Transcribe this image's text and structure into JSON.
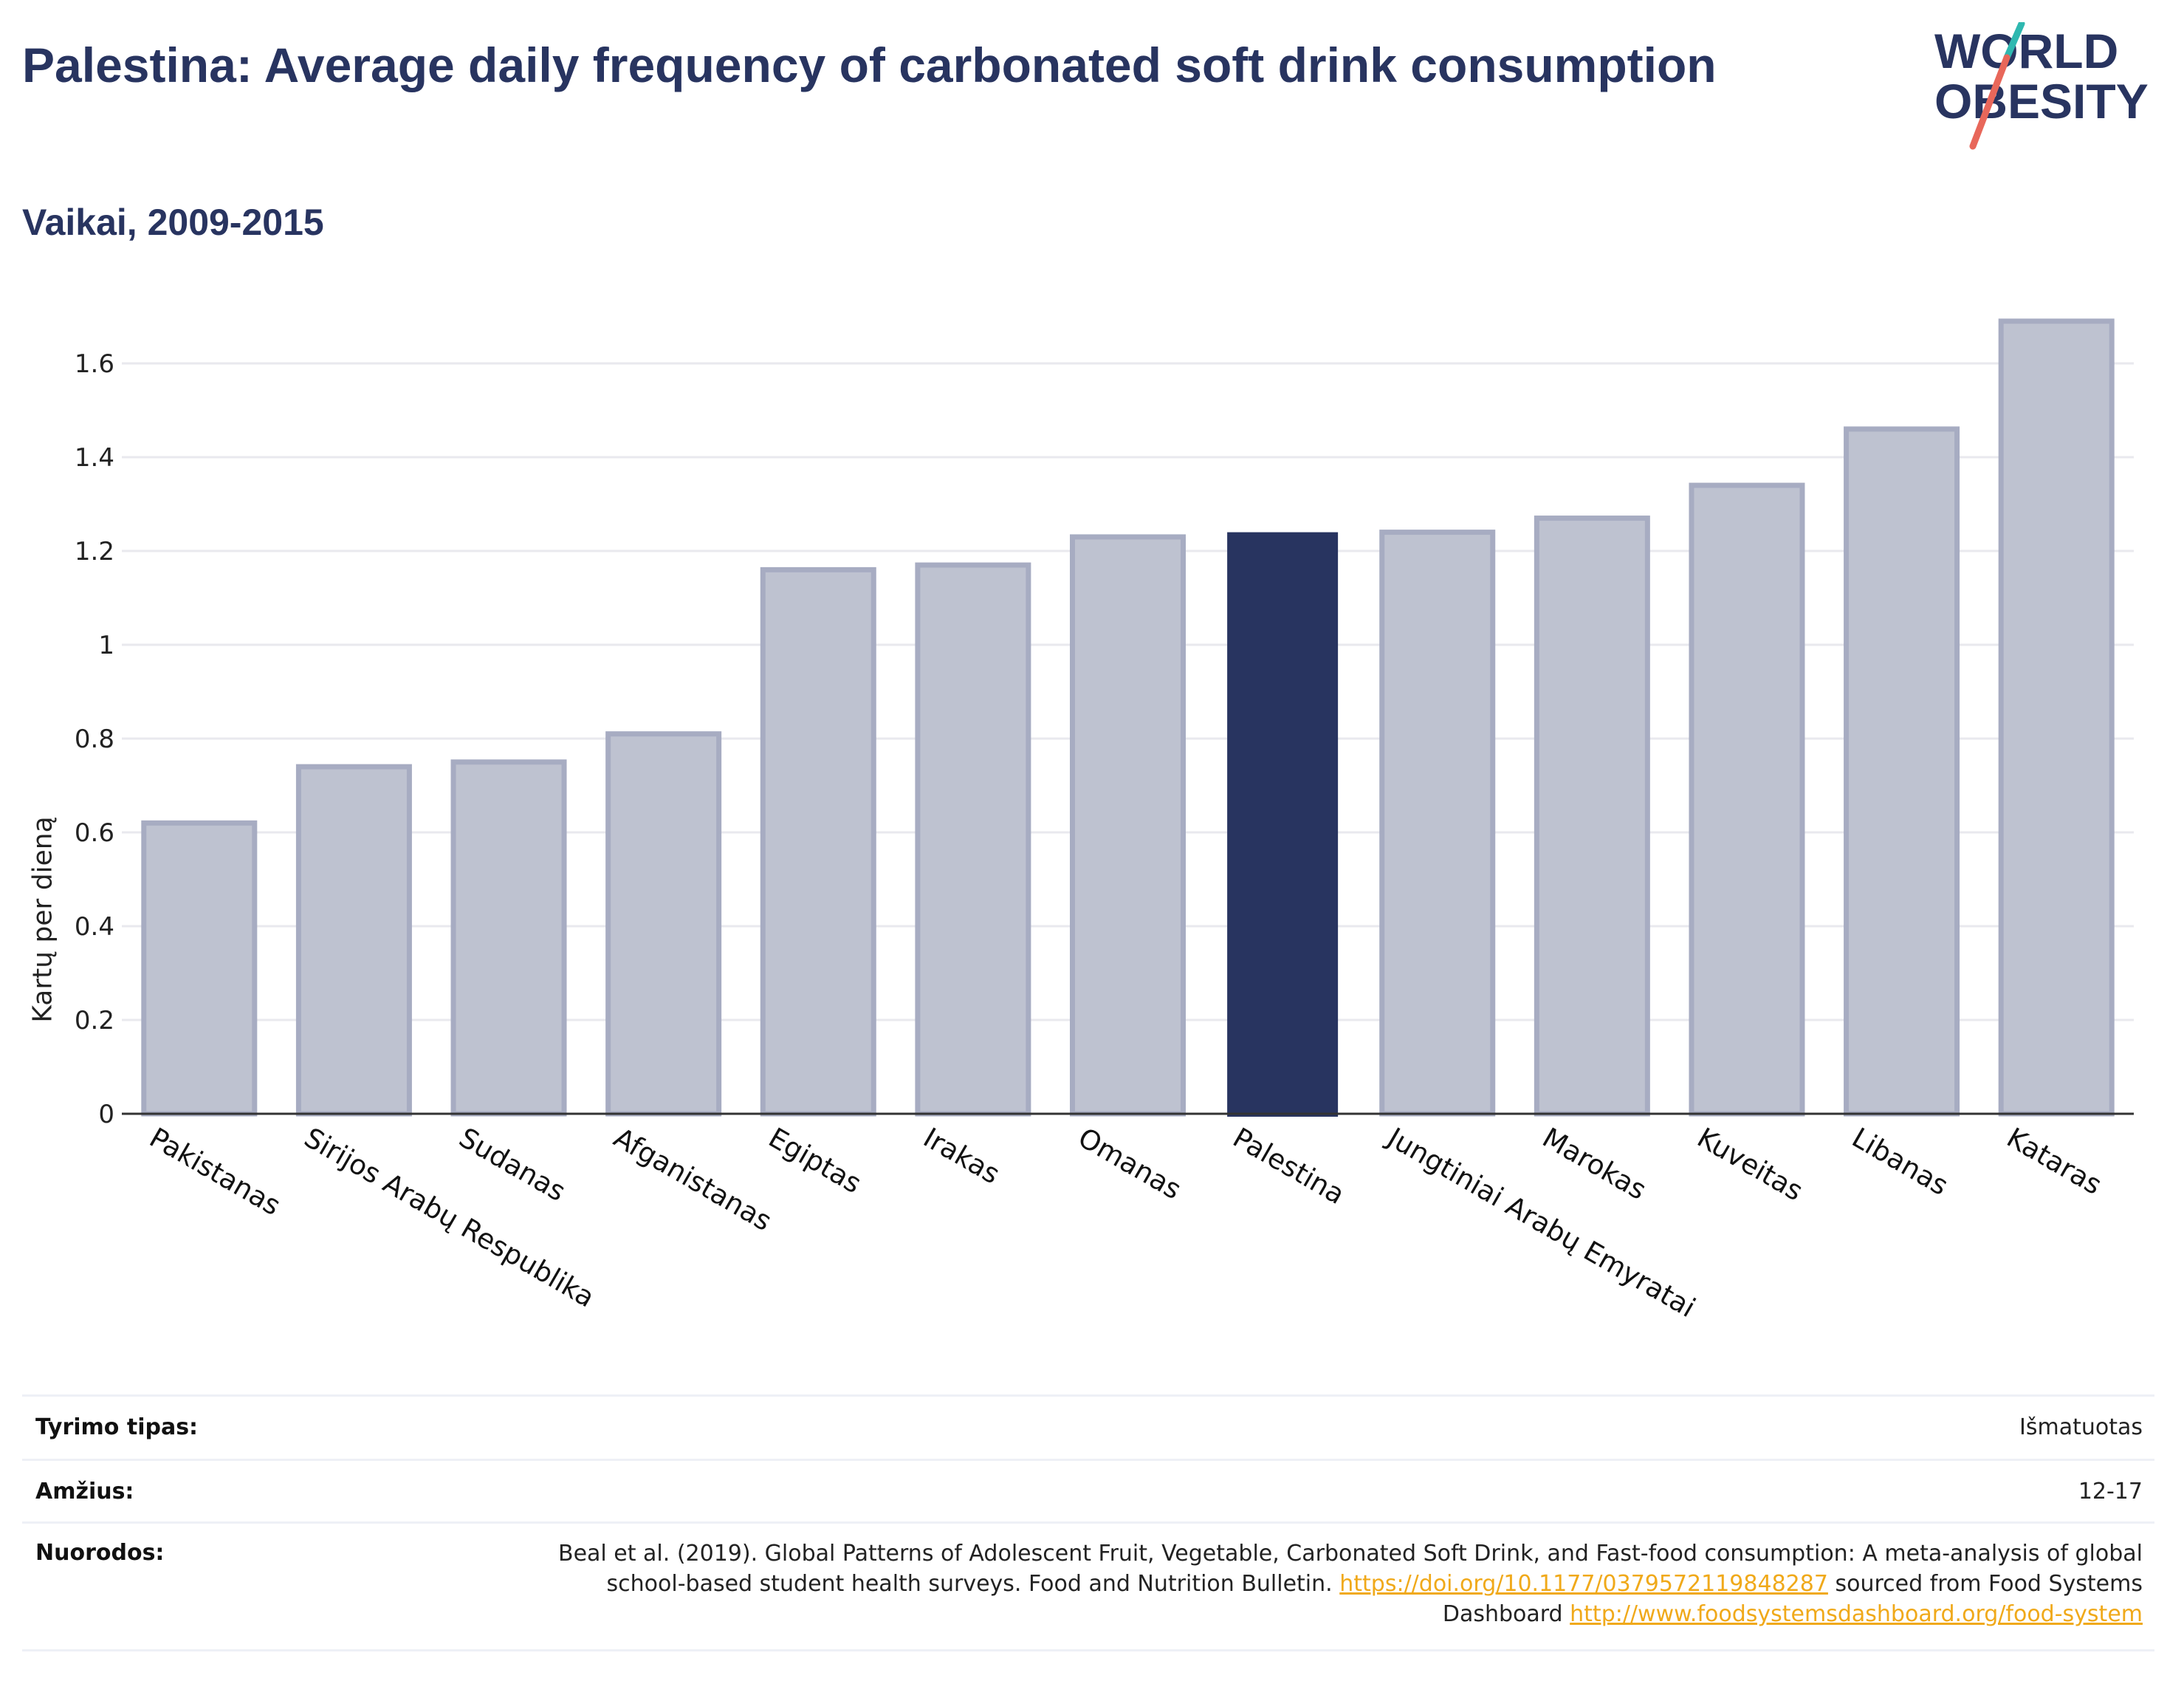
{
  "title": "Palestina: Average daily frequency of carbonated soft drink consumption",
  "subtitle": "Vaikai, 2009-2015",
  "logo": {
    "line1": "WORLD",
    "line2": "OBESITY"
  },
  "colors": {
    "bar": "#283460",
    "bar_faded": "#283460",
    "accent_teal": "#2fb8b0",
    "accent_red": "#e8675a",
    "link": "#f0a91a"
  },
  "chart_data": {
    "type": "bar",
    "ylabel": "Kartų per dieną",
    "ylim": [
      0,
      1.7
    ],
    "yticks": [
      0,
      0.2,
      0.4,
      0.6,
      0.8,
      1,
      1.2,
      1.4,
      1.6
    ],
    "ytick_labels": [
      "0",
      "0.2",
      "0.4",
      "0.6",
      "0.8",
      "1",
      "1.2",
      "1.4",
      "1.6"
    ],
    "categories": [
      "Pakistanas",
      "Sirijos Arabų Respublika",
      "Sudanas",
      "Afganistanas",
      "Egiptas",
      "Irakas",
      "Omanas",
      "Palestina",
      "Jungtiniai Arabų Emyratai",
      "Marokas",
      "Kuveitas",
      "Libanas",
      "Kataras"
    ],
    "values": [
      0.62,
      0.74,
      0.75,
      0.81,
      1.16,
      1.17,
      1.23,
      1.24,
      1.24,
      1.27,
      1.34,
      1.46,
      1.69
    ],
    "highlight": "Palestina",
    "grid": true
  },
  "meta": {
    "study_type_label": "Tyrimo tipas:",
    "study_type_value": "Išmatuotas",
    "age_label": "Amžius:",
    "age_value": "12-17",
    "refs_label": "Nuorodos:",
    "refs_text1": "Beal et al. (2019). Global Patterns of Adolescent Fruit, Vegetable, Carbonated Soft Drink, and Fast-food consumption: A meta-analysis of global school-based student health surveys. Food and Nutrition Bulletin.",
    "refs_link1": "https://doi.org/10.1177/0379572119848287",
    "refs_text2": "sourced from Food Systems Dashboard",
    "refs_link2": "http://www.foodsystemsdashboard.org/food-system"
  }
}
